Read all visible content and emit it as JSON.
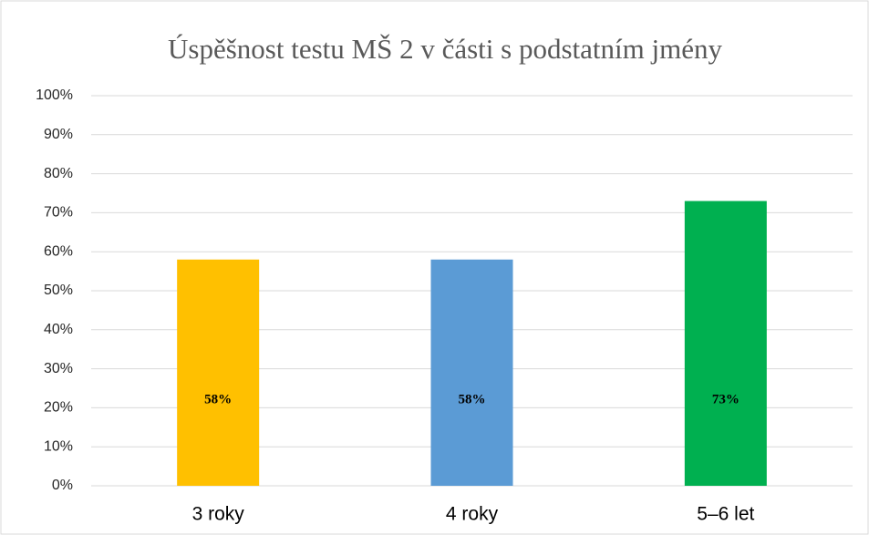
{
  "chart_data": {
    "type": "bar",
    "title": "Úspěšnost testu MŠ 2 v části s podstatním jmény",
    "categories": [
      "3 roky",
      "4 roky",
      "5–6 let"
    ],
    "values": [
      58,
      58,
      73
    ],
    "value_labels": [
      "58%",
      "58%",
      "73%"
    ],
    "colors": [
      "#ffc000",
      "#5b9bd5",
      "#00b050"
    ],
    "ylim": [
      0,
      100
    ],
    "yticks": [
      {
        "value": 0,
        "label": "0%"
      },
      {
        "value": 10,
        "label": "10%"
      },
      {
        "value": 20,
        "label": "20%"
      },
      {
        "value": 30,
        "label": "30%"
      },
      {
        "value": 40,
        "label": "40%"
      },
      {
        "value": 50,
        "label": "50%"
      },
      {
        "value": 60,
        "label": "60%"
      },
      {
        "value": 70,
        "label": "70%"
      },
      {
        "value": 80,
        "label": "80%"
      },
      {
        "value": 90,
        "label": "90%"
      },
      {
        "value": 100,
        "label": "100%"
      }
    ],
    "grid": true
  }
}
